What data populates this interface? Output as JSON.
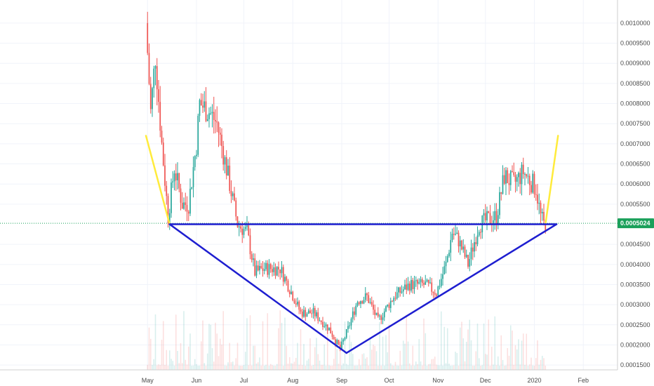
{
  "chart_data": {
    "type": "candlestick",
    "title": "",
    "xlabel": "",
    "ylabel": "",
    "ylim": [
      0.000138,
      0.00104
    ],
    "grid": true,
    "x_tick_labels": [
      "May",
      "Jun",
      "Jul",
      "Aug",
      "Sep",
      "Oct",
      "Nov",
      "Dec",
      "2020",
      "Feb"
    ],
    "y_tick_labels": [
      "0.0010000",
      "0.0009500",
      "0.0009000",
      "0.0008500",
      "0.0008000",
      "0.0007500",
      "0.0007000",
      "0.0006500",
      "0.0006000",
      "0.0005500",
      "0.0004500",
      "0.0004000",
      "0.0003500",
      "0.0003000",
      "0.0002500",
      "0.0002000",
      "0.0001500"
    ],
    "last_price_label": "0.0005024",
    "last_price": 0.0005024,
    "x_range": [
      "2019-04-30",
      "2020-02-12"
    ],
    "price_anchors": [
      [
        "2019-05-01",
        0.001
      ],
      [
        "2019-05-04",
        0.00078
      ],
      [
        "2019-05-07",
        0.00092
      ],
      [
        "2019-05-11",
        0.0007
      ],
      [
        "2019-05-15",
        0.00052
      ],
      [
        "2019-05-19",
        0.00064
      ],
      [
        "2019-05-24",
        0.00055
      ],
      [
        "2019-05-28",
        0.00055
      ],
      [
        "2019-06-02",
        0.0007
      ],
      [
        "2019-06-04",
        0.0008
      ],
      [
        "2019-06-10",
        0.00078
      ],
      [
        "2019-06-15",
        0.00075
      ],
      [
        "2019-06-22",
        0.00062
      ],
      [
        "2019-06-28",
        0.0005
      ],
      [
        "2019-07-04",
        0.00048
      ],
      [
        "2019-07-09",
        0.00038
      ],
      [
        "2019-07-15",
        0.00039
      ],
      [
        "2019-07-25",
        0.00039
      ],
      [
        "2019-07-31",
        0.00034
      ],
      [
        "2019-08-07",
        0.00028
      ],
      [
        "2019-08-15",
        0.00028
      ],
      [
        "2019-08-25",
        0.00024
      ],
      [
        "2019-09-01",
        0.00019
      ],
      [
        "2019-09-06",
        0.00024
      ],
      [
        "2019-09-12",
        0.00031
      ],
      [
        "2019-09-18",
        0.00032
      ],
      [
        "2019-09-25",
        0.00026
      ],
      [
        "2019-10-05",
        0.00032
      ],
      [
        "2019-10-15",
        0.00035
      ],
      [
        "2019-10-25",
        0.00035
      ],
      [
        "2019-11-01",
        0.00033
      ],
      [
        "2019-11-07",
        0.0004
      ],
      [
        "2019-11-11",
        0.00048
      ],
      [
        "2019-11-15",
        0.00046
      ],
      [
        "2019-11-21",
        0.0004
      ],
      [
        "2019-11-28",
        0.0005
      ],
      [
        "2019-12-03",
        0.00051
      ],
      [
        "2019-12-09",
        0.00052
      ],
      [
        "2019-12-14",
        0.00062
      ],
      [
        "2019-12-20",
        0.0006
      ],
      [
        "2019-12-26",
        0.00063
      ],
      [
        "2020-01-03",
        0.00059
      ],
      [
        "2020-01-06",
        0.00052
      ],
      [
        "2020-01-08",
        0.0005
      ]
    ],
    "up_color": "#26a69a",
    "down_color": "#ef5350",
    "annotations": [
      {
        "kind": "trendline",
        "color": "#ffeb3b",
        "points": [
          [
            "2019-04-30",
            0.00072
          ],
          [
            "2019-05-15",
            0.0005
          ]
        ]
      },
      {
        "kind": "trendline",
        "color": "#ffeb3b",
        "points": [
          [
            "2020-01-08",
            0.0005
          ],
          [
            "2020-01-16",
            0.00072
          ]
        ]
      },
      {
        "kind": "trendline",
        "color": "#1e1ed0",
        "points": [
          [
            "2019-05-15",
            0.0005
          ],
          [
            "2020-01-15",
            0.0005
          ]
        ]
      },
      {
        "kind": "trendline",
        "color": "#1e1ed0",
        "points": [
          [
            "2019-05-15",
            0.0005
          ],
          [
            "2019-09-04",
            0.00018
          ]
        ]
      },
      {
        "kind": "trendline",
        "color": "#1e1ed0",
        "points": [
          [
            "2019-09-04",
            0.00018
          ],
          [
            "2020-01-15",
            0.0005
          ]
        ]
      }
    ]
  }
}
